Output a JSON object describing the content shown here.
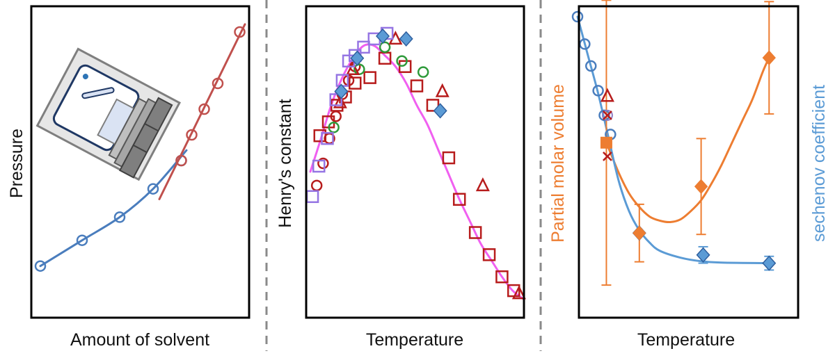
{
  "colors": {
    "blue": "#4a7dbd",
    "red": "#c0504d",
    "dark_red": "#b71c1c",
    "green": "#2e9a3a",
    "purple": "#9575e3",
    "magenta": "#f060f0",
    "steel_blue": "#5b9bd5",
    "orange": "#ed7d31",
    "divider": "#8a8a8a"
  },
  "chart_data": [
    {
      "type": "line",
      "title": "",
      "xlabel": "Amount of solvent",
      "ylabel": "Pressure",
      "xlim": [
        0,
        10
      ],
      "ylim": [
        0,
        10
      ],
      "ticks": "none",
      "inset": "equilibrium-cell-icon",
      "series": [
        {
          "name": "low-pressure branch",
          "marker": "circle",
          "color": "#4a7dbd",
          "x": [
            0.2,
            2.2,
            4.0,
            5.6,
            6.95
          ],
          "y": [
            0.9,
            1.9,
            2.8,
            3.9,
            5.0
          ]
        },
        {
          "name": "high-pressure branch",
          "marker": "circle",
          "color": "#c0504d",
          "x": [
            6.95,
            7.45,
            8.05,
            8.7,
            9.75
          ],
          "y": [
            5.0,
            6.0,
            7.0,
            8.0,
            10.0
          ]
        }
      ],
      "lines": [
        {
          "name": "blue fit",
          "color": "#4a7dbd",
          "x": [
            0.2,
            2.2,
            4.0,
            5.6,
            7.2
          ],
          "y": [
            0.9,
            1.9,
            2.8,
            3.9,
            5.4
          ]
        },
        {
          "name": "red fit",
          "color": "#c0504d",
          "x": [
            5.9,
            10
          ],
          "y": [
            3.5,
            10.3
          ]
        }
      ]
    },
    {
      "type": "scatter",
      "title": "",
      "xlabel": "Temperature",
      "ylabel": "Henry's constant",
      "xlim": [
        0,
        10
      ],
      "ylim": [
        0,
        10
      ],
      "ticks": "none",
      "series": [
        {
          "name": "red squares",
          "marker": "square",
          "color": "#b71c1c",
          "x": [
            0.45,
            0.85,
            1.25,
            1.65,
            2.1,
            2.8,
            3.5,
            4.45,
            5.0,
            5.75,
            6.5,
            7.0,
            7.75,
            8.4,
            9.0,
            9.55
          ],
          "y": [
            6.1,
            6.6,
            7.2,
            7.5,
            8.0,
            8.2,
            8.9,
            8.6,
            7.9,
            7.2,
            5.3,
            3.8,
            2.6,
            1.8,
            1.0,
            0.5
          ]
        },
        {
          "name": "red circles",
          "marker": "circle",
          "color": "#b71c1c",
          "x": [
            0.3,
            0.6,
            0.9,
            1.2,
            1.5,
            1.8,
            2.1
          ],
          "y": [
            4.3,
            5.1,
            6.0,
            6.8,
            7.6,
            8.1,
            8.6
          ]
        },
        {
          "name": "green circles",
          "marker": "circle",
          "color": "#2e9a3a",
          "x": [
            1.1,
            2.3,
            3.5,
            4.3,
            5.3
          ],
          "y": [
            6.4,
            8.5,
            9.3,
            8.8,
            8.4
          ]
        },
        {
          "name": "red triangles",
          "marker": "triangle",
          "color": "#b71c1c",
          "x": [
            1.4,
            2.0,
            4.0,
            6.2,
            8.1,
            9.8
          ],
          "y": [
            7.3,
            8.5,
            9.6,
            7.7,
            4.3,
            0.4
          ]
        },
        {
          "name": "purple squares",
          "marker": "square",
          "color": "#9575e3",
          "x": [
            0.1,
            0.4,
            0.8,
            1.2,
            1.5,
            1.8,
            2.1,
            2.5,
            3.0,
            3.6
          ],
          "y": [
            3.9,
            5.0,
            6.0,
            7.4,
            8.1,
            8.8,
            9.0,
            9.3,
            9.6,
            9.8
          ]
        },
        {
          "name": "blue diamonds",
          "marker": "diamond",
          "color": "#5b9bd5",
          "x": [
            1.45,
            2.2,
            3.4,
            4.5,
            6.1
          ],
          "y": [
            7.7,
            8.9,
            9.7,
            9.6,
            7.0
          ]
        }
      ],
      "lines": [
        {
          "name": "fit",
          "color": "#f060f0",
          "x": [
            0.0,
            0.5,
            1.0,
            1.5,
            2.0,
            2.5,
            3.0,
            3.5,
            4.0,
            4.5,
            5.0,
            5.5,
            6.0,
            6.5,
            7.0,
            7.5,
            8.0,
            8.5,
            9.0,
            9.5,
            10.0
          ],
          "y": [
            4.8,
            6.0,
            7.25,
            8.2,
            8.9,
            9.35,
            9.35,
            9.0,
            8.6,
            8.0,
            7.2,
            6.5,
            5.6,
            4.7,
            3.8,
            3.0,
            2.2,
            1.6,
            1.0,
            0.5,
            0.2
          ]
        }
      ]
    },
    {
      "type": "line",
      "title": "",
      "xlabel": "Temperature",
      "ylabel": "Partial molar volume",
      "ylabel_right": "sechenov coefficient",
      "xlim": [
        0,
        10
      ],
      "ylim": [
        0,
        10
      ],
      "ticks": "none",
      "series": [
        {
          "name": "sechenov circles",
          "axis": "right",
          "marker": "circle",
          "color": "#4a7dbd",
          "x": [
            0.0,
            0.35,
            0.65,
            1.0,
            1.3,
            1.6
          ],
          "y": [
            10.0,
            9.0,
            8.2,
            7.3,
            6.4,
            5.7
          ]
        },
        {
          "name": "sechenov diamonds",
          "axis": "right",
          "marker": "diamond",
          "color": "#5b9bd5",
          "x": [
            3.0,
            6.1,
            9.3
          ],
          "y": [
            2.1,
            1.3,
            1.0
          ],
          "err": [
            0.05,
            0.3,
            0.25
          ]
        },
        {
          "name": "partial molar volume",
          "axis": "left",
          "marker": "diamond-filled",
          "color": "#ed7d31",
          "x": [
            3.0,
            6.0,
            9.3
          ],
          "y": [
            2.1,
            3.8,
            8.5
          ],
          "err": [
            1.05,
            1.75,
            2.05
          ]
        },
        {
          "name": "orange square",
          "axis": "left",
          "marker": "square-filled",
          "color": "#ed7d31",
          "x": [
            1.4
          ],
          "y": [
            5.4
          ],
          "err": [
            5.2
          ]
        },
        {
          "name": "dark red markers",
          "axis": "left",
          "marker": "triangle-x",
          "color": "#b71c1c",
          "x": [
            1.45,
            1.45,
            1.45
          ],
          "y": [
            7.1,
            6.4,
            4.9
          ]
        }
      ],
      "lines": [
        {
          "name": "orange fit",
          "color": "#ed7d31",
          "x": [
            1.4,
            2.0,
            2.5,
            3.0,
            3.5,
            4.0,
            4.5,
            5.0,
            5.5,
            6.0,
            6.5,
            7.0,
            7.5,
            8.0,
            8.5,
            9.0,
            9.3
          ],
          "y": [
            5.4,
            4.3,
            3.55,
            3.05,
            2.7,
            2.55,
            2.5,
            2.6,
            2.9,
            3.3,
            3.9,
            4.6,
            5.4,
            6.2,
            7.0,
            8.0,
            8.5
          ]
        },
        {
          "name": "blue fit",
          "color": "#5b9bd5",
          "x": [
            0.0,
            0.5,
            1.0,
            1.5,
            2.0,
            2.5,
            3.0,
            3.5,
            4.0,
            5.0,
            6.0,
            7.0,
            8.0,
            9.3
          ],
          "y": [
            10.0,
            8.6,
            7.2,
            5.6,
            4.0,
            2.9,
            2.2,
            1.75,
            1.45,
            1.2,
            1.07,
            1.02,
            1.01,
            1.0
          ]
        }
      ]
    }
  ]
}
